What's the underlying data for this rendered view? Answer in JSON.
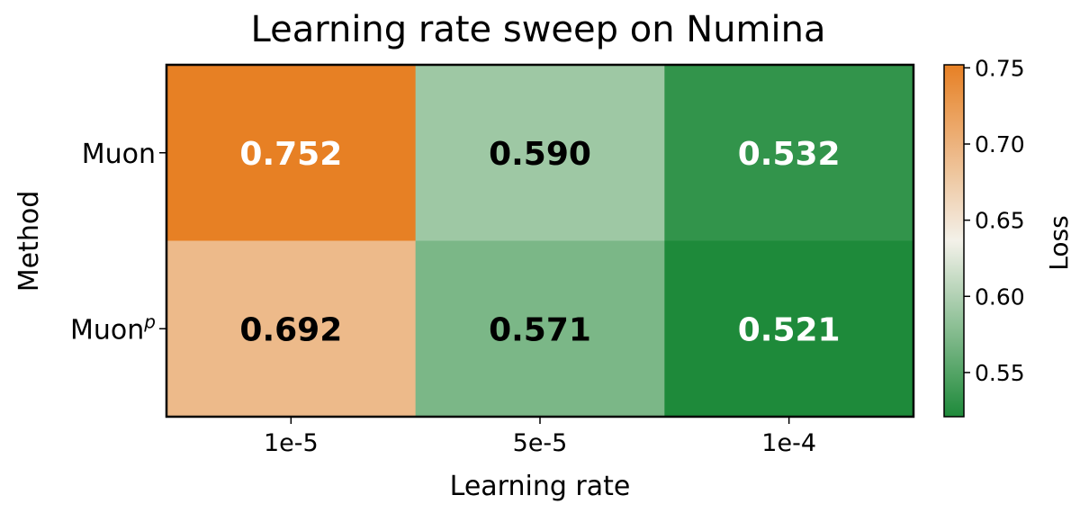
{
  "chart_data": {
    "type": "heatmap",
    "title": "Learning rate sweep on Numina",
    "xlabel": "Learning rate",
    "ylabel": "Method",
    "x_categories": [
      "1e-5",
      "5e-5",
      "1e-4"
    ],
    "y_categories": [
      {
        "base": "Muon",
        "sup": ""
      },
      {
        "base": "Muon",
        "sup": "p"
      }
    ],
    "values": [
      [
        0.752,
        0.59,
        0.532
      ],
      [
        0.692,
        0.571,
        0.521
      ]
    ],
    "value_labels": [
      [
        "0.752",
        "0.590",
        "0.532"
      ],
      [
        "0.692",
        "0.571",
        "0.521"
      ]
    ],
    "label_colors": [
      [
        "#ffffff",
        "#000000",
        "#ffffff"
      ],
      [
        "#000000",
        "#000000",
        "#ffffff"
      ]
    ],
    "colorbar": {
      "label": "Loss",
      "vmin": 0.521,
      "vmax": 0.752,
      "ticks": [
        0.55,
        0.6,
        0.65,
        0.7,
        0.75
      ],
      "tick_labels": [
        "0.55",
        "0.60",
        "0.65",
        "0.70",
        "0.75"
      ]
    },
    "colormap": {
      "low": "#1e8a3a",
      "mid": "#f3f1ea",
      "high": "#e78024",
      "mid_value": 0.636
    }
  }
}
